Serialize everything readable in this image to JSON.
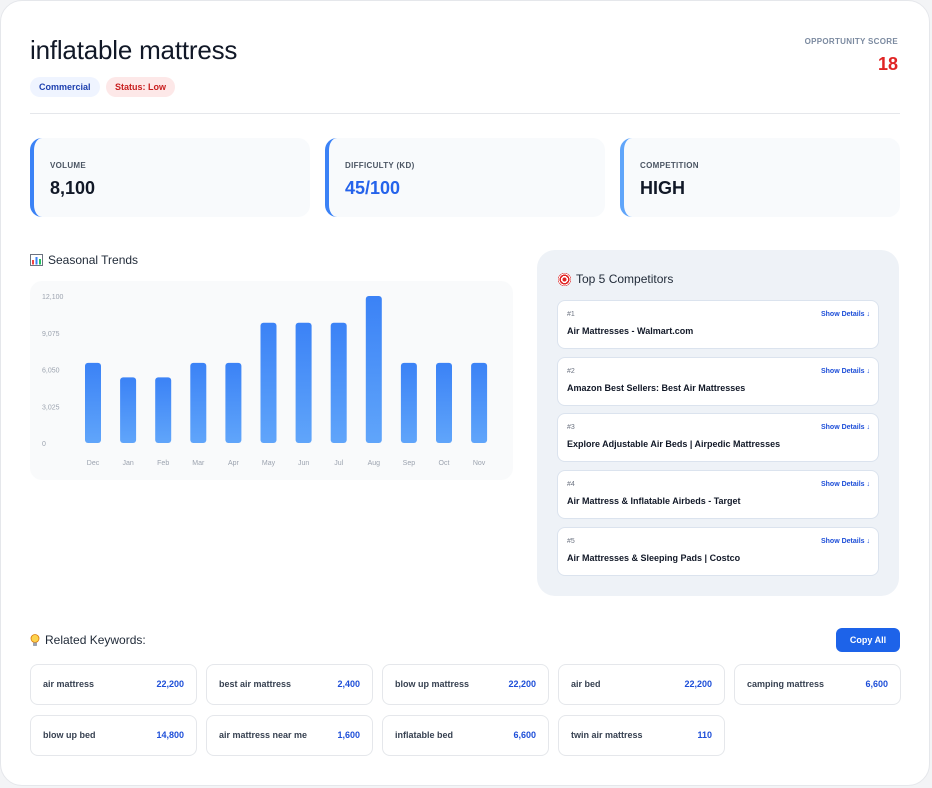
{
  "header": {
    "title": "inflatable mattress",
    "badges": {
      "intent": "Commercial",
      "status": "Status: Low"
    },
    "opportunity_label": "OPPORTUNITY SCORE",
    "opportunity_value": "18"
  },
  "metrics": [
    {
      "label": "VOLUME",
      "value": "8,100"
    },
    {
      "label": "DIFFICULTY (KD)",
      "value": "45/100"
    },
    {
      "label": "COMPETITION",
      "value": "HIGH"
    }
  ],
  "trends": {
    "title": "Seasonal Trends",
    "icon": "bar-chart-icon"
  },
  "chart_data": {
    "type": "bar",
    "categories": [
      "Dec",
      "Jan",
      "Feb",
      "Mar",
      "Apr",
      "May",
      "Jun",
      "Jul",
      "Aug",
      "Sep",
      "Oct",
      "Nov"
    ],
    "values": [
      6600,
      5400,
      5400,
      6600,
      6600,
      9900,
      9900,
      9900,
      12100,
      6600,
      6600,
      6600
    ],
    "yticks": [
      "12,100",
      "9,075",
      "6,050",
      "3,025",
      "0"
    ],
    "ytick_values": [
      12100,
      9075,
      6050,
      3025,
      0
    ],
    "ylim": [
      0,
      12100
    ],
    "color": "#3b82f6",
    "grid": false
  },
  "competitors": {
    "title": "Top 5 Competitors",
    "icon": "target-icon",
    "details_label": "Show Details ↓",
    "items": [
      {
        "rank": "#1",
        "name": "Air Mattresses - Walmart.com"
      },
      {
        "rank": "#2",
        "name": "Amazon Best Sellers: Best Air Mattresses"
      },
      {
        "rank": "#3",
        "name": "Explore Adjustable Air Beds | Airpedic Mattresses"
      },
      {
        "rank": "#4",
        "name": "Air Mattress & Inflatable Airbeds - Target"
      },
      {
        "rank": "#5",
        "name": "Air Mattresses & Sleeping Pads | Costco"
      }
    ]
  },
  "related": {
    "title": "Related Keywords:",
    "icon": "lightbulb-icon",
    "copy_label": "Copy All",
    "items": [
      {
        "keyword": "air mattress",
        "volume": "22,200"
      },
      {
        "keyword": "best air mattress",
        "volume": "2,400"
      },
      {
        "keyword": "blow up mattress",
        "volume": "22,200"
      },
      {
        "keyword": "air bed",
        "volume": "22,200"
      },
      {
        "keyword": "camping mattress",
        "volume": "6,600"
      },
      {
        "keyword": "blow up bed",
        "volume": "14,800"
      },
      {
        "keyword": "air mattress near me",
        "volume": "1,600"
      },
      {
        "keyword": "inflatable bed",
        "volume": "6,600"
      },
      {
        "keyword": "twin air mattress",
        "volume": "110"
      }
    ]
  },
  "colors": {
    "accent": "#2563eb",
    "score": "#e02424",
    "panel": "#eef2f7"
  }
}
